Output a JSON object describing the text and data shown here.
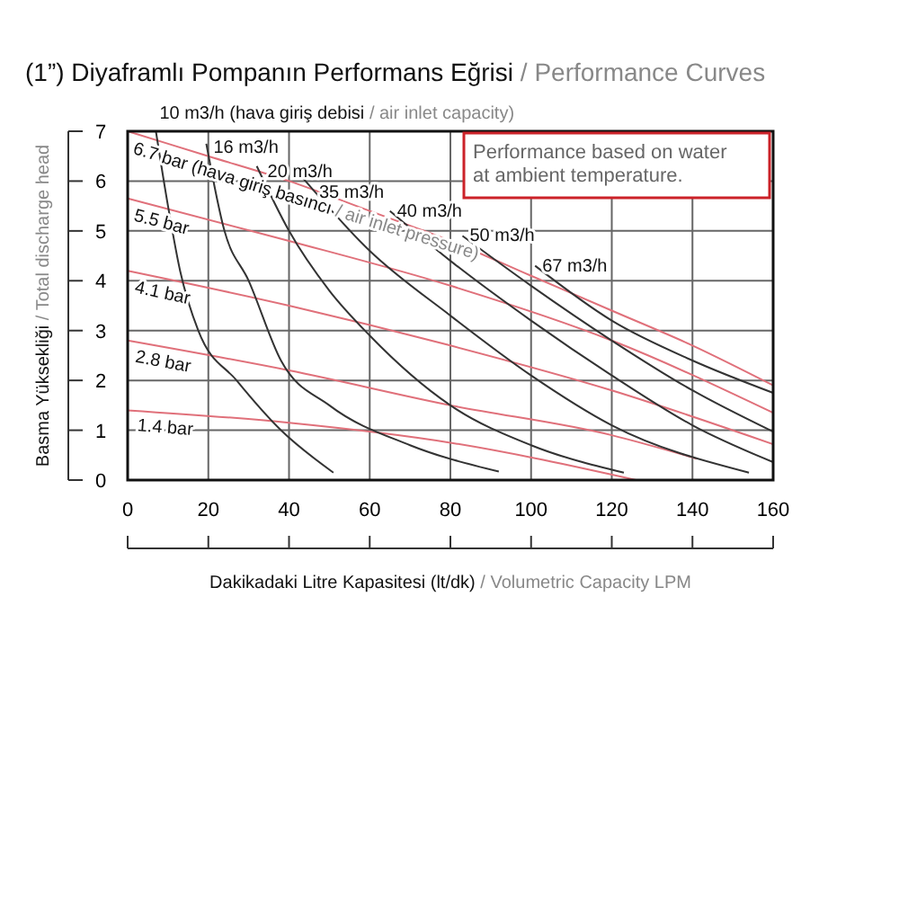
{
  "chart_data": {
    "type": "line",
    "title": "(1”) Diyaframlı Pompanın Performans Eğrisi / Performance Curves",
    "xlabel": "Dakikadaki Litre Kapasitesi (lt/dk) / Volumetric Capacity LPM",
    "ylabel": "Basma Yüksekliği / Total discharge head",
    "annotations": [
      "Performance based on water at ambient temperature."
    ],
    "xlim": [
      0,
      160
    ],
    "ylim": [
      0,
      7
    ],
    "xticks": [
      0,
      20,
      40,
      60,
      80,
      100,
      120,
      140,
      160
    ],
    "yticks": [
      0,
      1,
      2,
      3,
      4,
      5,
      6,
      7
    ],
    "grid": true,
    "legend": false,
    "marker": "none",
    "line_style": "solid",
    "series": [
      {
        "name": "6.7 bar (hava giriş basıncı / air inlet pressure)",
        "color": "#e0707a",
        "x": [
          0,
          20,
          40,
          60,
          80,
          100,
          120,
          140,
          160
        ],
        "values": [
          7,
          6.5,
          6.0,
          5.4,
          4.8,
          4.1,
          3.4,
          2.7,
          1.9
        ]
      },
      {
        "name": "5.5 bar",
        "color": "#e0707a",
        "x": [
          0,
          40,
          80,
          120,
          160
        ],
        "values": [
          5.65,
          4.8,
          3.9,
          2.8,
          1.35
        ]
      },
      {
        "name": "4.1 bar",
        "color": "#e0707a",
        "x": [
          0,
          40,
          80,
          120,
          160
        ],
        "values": [
          4.2,
          3.5,
          2.7,
          1.8,
          0.72
        ]
      },
      {
        "name": "2.8 bar",
        "color": "#e0707a",
        "x": [
          0,
          40,
          80,
          120,
          141
        ],
        "values": [
          2.8,
          2.2,
          1.5,
          0.9,
          0.43
        ]
      },
      {
        "name": "1.4 bar",
        "color": "#e0707a",
        "x": [
          0,
          40,
          80,
          126
        ],
        "values": [
          1.4,
          1.15,
          0.75,
          0
        ]
      },
      {
        "name": "10 m3/h (hava giriş debisi / air inlet capacity)",
        "color": "#333333",
        "x": [
          7,
          10,
          13,
          17.5,
          27,
          38,
          51
        ],
        "values": [
          7,
          5.5,
          4.2,
          3,
          2,
          1,
          0.15
        ]
      },
      {
        "name": "16 m3/h",
        "color": "#333333",
        "x": [
          19.5,
          24,
          30,
          38,
          50,
          70,
          92
        ],
        "values": [
          6.75,
          5,
          4,
          2.4,
          1.5,
          0.7,
          0.17
        ]
      },
      {
        "name": "20 m3/h",
        "color": "#333333",
        "x": [
          32,
          40,
          50,
          60,
          80,
          100,
          123
        ],
        "values": [
          6.3,
          5,
          3.8,
          2.9,
          1.5,
          0.7,
          0.15
        ]
      },
      {
        "name": "35 m3/h",
        "color": "#333333",
        "x": [
          43,
          60,
          80,
          100,
          120,
          154
        ],
        "values": [
          6.1,
          4.6,
          3.3,
          2.1,
          1.1,
          0.15
        ]
      },
      {
        "name": "40 m3/h",
        "color": "#333333",
        "x": [
          65,
          80,
          100,
          120,
          140,
          160
        ],
        "values": [
          5.4,
          4.4,
          3.2,
          2.1,
          1.1,
          0.36
        ]
      },
      {
        "name": "50 m3/h",
        "color": "#333333",
        "x": [
          83,
          100,
          120,
          140,
          160
        ],
        "values": [
          4.9,
          3.9,
          2.8,
          1.8,
          0.97
        ]
      },
      {
        "name": "67 m3/h",
        "color": "#333333",
        "x": [
          101,
          120,
          140,
          160
        ],
        "values": [
          4.3,
          3.2,
          2.4,
          1.75
        ]
      }
    ]
  }
}
